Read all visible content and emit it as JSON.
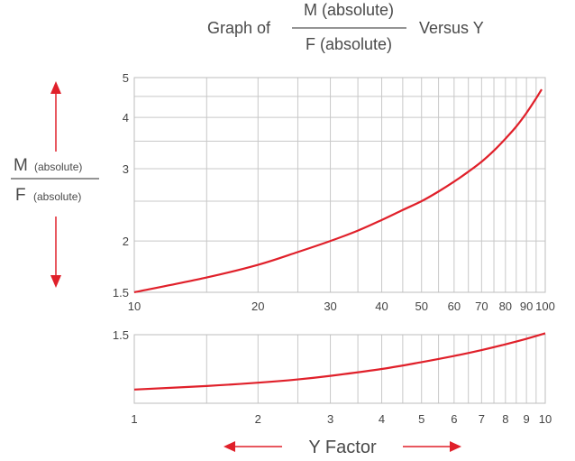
{
  "colors": {
    "curve": "#e0202a",
    "grid": "#c8c8c8",
    "text": "#4a4a4a"
  },
  "chart_data": [
    {
      "type": "line",
      "title": {
        "prefix": "Graph of",
        "numerator": "M (absolute)",
        "denominator": "F (absolute)",
        "suffix": "Versus Y"
      },
      "ylabel": {
        "main_top": "M",
        "sub_top": "(absolute)",
        "main_bottom": "F",
        "sub_bottom": "(absolute)"
      },
      "x_scale": "log",
      "y_scale": "log",
      "xlim": [
        10,
        100
      ],
      "ylim": [
        1.5,
        5
      ],
      "x_ticks": [
        {
          "value": 10,
          "label": "10"
        },
        {
          "value": 20,
          "label": "20"
        },
        {
          "value": 30,
          "label": "30"
        },
        {
          "value": 40,
          "label": "40"
        },
        {
          "value": 50,
          "label": "50"
        },
        {
          "value": 60,
          "label": "60"
        },
        {
          "value": 70,
          "label": "70"
        },
        {
          "value": 80,
          "label": "80"
        },
        {
          "value": 90,
          "label": "90"
        },
        {
          "value": 100,
          "label": "100"
        }
      ],
      "y_ticks": [
        {
          "value": 1.5,
          "label": "1.5"
        },
        {
          "value": 2,
          "label": "2"
        },
        {
          "value": 3,
          "label": "3"
        },
        {
          "value": 4,
          "label": "4"
        },
        {
          "value": 5,
          "label": "5"
        }
      ],
      "x_grid": [
        10,
        15,
        20,
        25,
        30,
        35,
        40,
        45,
        50,
        55,
        60,
        65,
        70,
        75,
        80,
        85,
        90,
        95,
        100
      ],
      "y_grid": [
        1.5,
        2,
        2.5,
        3,
        3.5,
        4,
        4.5,
        5
      ],
      "grid": true,
      "series": [
        {
          "x": [
            10,
            15,
            20,
            25,
            30,
            35,
            40,
            45,
            50,
            55,
            60,
            65,
            70,
            75,
            80,
            85,
            90,
            95,
            98
          ],
          "y": [
            1.5,
            1.63,
            1.75,
            1.88,
            2.0,
            2.12,
            2.25,
            2.38,
            2.5,
            2.64,
            2.79,
            2.95,
            3.12,
            3.32,
            3.55,
            3.8,
            4.1,
            4.45,
            4.68
          ]
        }
      ]
    },
    {
      "type": "line",
      "x_scale": "log",
      "y_scale": "linear",
      "xlim": [
        1,
        10
      ],
      "ylim": [
        1.0,
        1.5
      ],
      "x_ticks": [
        {
          "value": 1,
          "label": "1"
        },
        {
          "value": 2,
          "label": "2"
        },
        {
          "value": 3,
          "label": "3"
        },
        {
          "value": 4,
          "label": "4"
        },
        {
          "value": 5,
          "label": "5"
        },
        {
          "value": 6,
          "label": "6"
        },
        {
          "value": 7,
          "label": "7"
        },
        {
          "value": 8,
          "label": "8"
        },
        {
          "value": 9,
          "label": "9"
        },
        {
          "value": 10,
          "label": "10"
        }
      ],
      "y_ticks": [
        {
          "value": 1.5,
          "label": "1.5"
        }
      ],
      "x_grid": [
        1,
        1.5,
        2,
        2.5,
        3,
        3.5,
        4,
        4.5,
        5,
        5.5,
        6,
        6.5,
        7,
        7.5,
        8,
        8.5,
        9,
        9.5,
        10
      ],
      "grid": true,
      "series": [
        {
          "x": [
            1,
            1.5,
            2,
            2.5,
            3,
            4,
            5,
            6,
            7,
            8,
            9,
            10
          ],
          "y": [
            1.1,
            1.126,
            1.15,
            1.174,
            1.2,
            1.25,
            1.3,
            1.345,
            1.388,
            1.43,
            1.47,
            1.51
          ]
        }
      ],
      "xlabel": "Y Factor"
    }
  ]
}
